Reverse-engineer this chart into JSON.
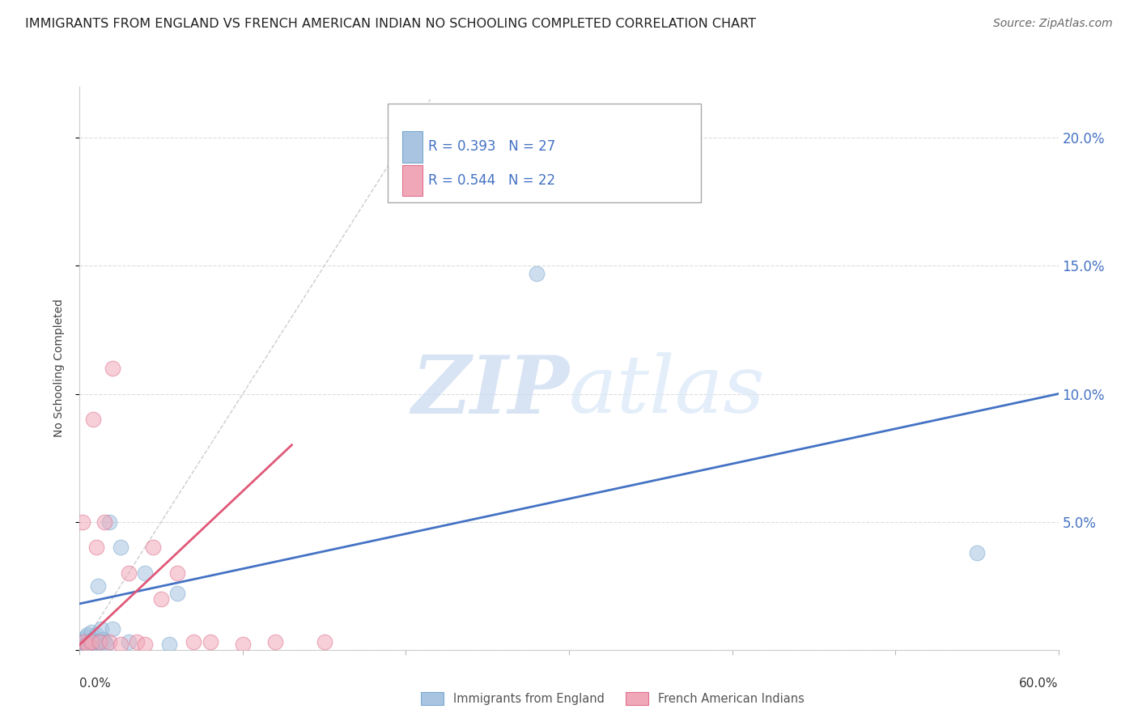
{
  "title": "IMMIGRANTS FROM ENGLAND VS FRENCH AMERICAN INDIAN NO SCHOOLING COMPLETED CORRELATION CHART",
  "source": "Source: ZipAtlas.com",
  "ylabel": "No Schooling Completed",
  "watermark_zip": "ZIP",
  "watermark_atlas": "atlas",
  "xlim": [
    0.0,
    0.6
  ],
  "ylim": [
    0.0,
    0.22
  ],
  "yticks": [
    0.0,
    0.05,
    0.1,
    0.15,
    0.2
  ],
  "ytick_labels": [
    "",
    "5.0%",
    "10.0%",
    "15.0%",
    "20.0%"
  ],
  "legend_r1": "R = 0.393",
  "legend_n1": "N = 27",
  "legend_r2": "R = 0.544",
  "legend_n2": "N = 22",
  "blue_scatter_color": "#A8C4E0",
  "blue_scatter_edge": "#7AAAD0",
  "pink_scatter_color": "#F0A8B8",
  "pink_scatter_edge": "#E07090",
  "blue_line_color": "#4472C4",
  "pink_line_color": "#E05878",
  "diag_line_color": "#CCCCCC",
  "legend_label1": "Immigrants from England",
  "legend_label2": "French American Indians",
  "blue_scatter_x": [
    0.002,
    0.003,
    0.004,
    0.004,
    0.005,
    0.005,
    0.006,
    0.007,
    0.007,
    0.008,
    0.009,
    0.01,
    0.011,
    0.012,
    0.013,
    0.014,
    0.015,
    0.016,
    0.018,
    0.02,
    0.025,
    0.03,
    0.04,
    0.055,
    0.06,
    0.28,
    0.55
  ],
  "blue_scatter_y": [
    0.003,
    0.004,
    0.002,
    0.005,
    0.003,
    0.006,
    0.003,
    0.002,
    0.007,
    0.004,
    0.003,
    0.006,
    0.025,
    0.003,
    0.008,
    0.004,
    0.003,
    0.002,
    0.05,
    0.008,
    0.04,
    0.003,
    0.03,
    0.002,
    0.022,
    0.147,
    0.038
  ],
  "pink_scatter_x": [
    0.002,
    0.003,
    0.005,
    0.007,
    0.008,
    0.01,
    0.012,
    0.015,
    0.018,
    0.02,
    0.025,
    0.03,
    0.035,
    0.04,
    0.045,
    0.05,
    0.06,
    0.07,
    0.08,
    0.1,
    0.12,
    0.15
  ],
  "pink_scatter_y": [
    0.05,
    0.003,
    0.002,
    0.003,
    0.09,
    0.04,
    0.003,
    0.05,
    0.003,
    0.11,
    0.002,
    0.03,
    0.003,
    0.002,
    0.04,
    0.02,
    0.03,
    0.003,
    0.003,
    0.002,
    0.003,
    0.003
  ],
  "blue_line_x": [
    0.0,
    0.6
  ],
  "blue_line_y": [
    0.018,
    0.1
  ],
  "pink_line_x": [
    0.0,
    0.13
  ],
  "pink_line_y": [
    0.002,
    0.08
  ],
  "diag_line_x": [
    0.0,
    0.215
  ],
  "diag_line_y": [
    0.0,
    0.215
  ],
  "right_ytick_color": "#4472C4",
  "title_fontsize": 11.5,
  "source_fontsize": 10,
  "axis_label_fontsize": 10,
  "scatter_size": 180,
  "scatter_alpha": 0.55
}
